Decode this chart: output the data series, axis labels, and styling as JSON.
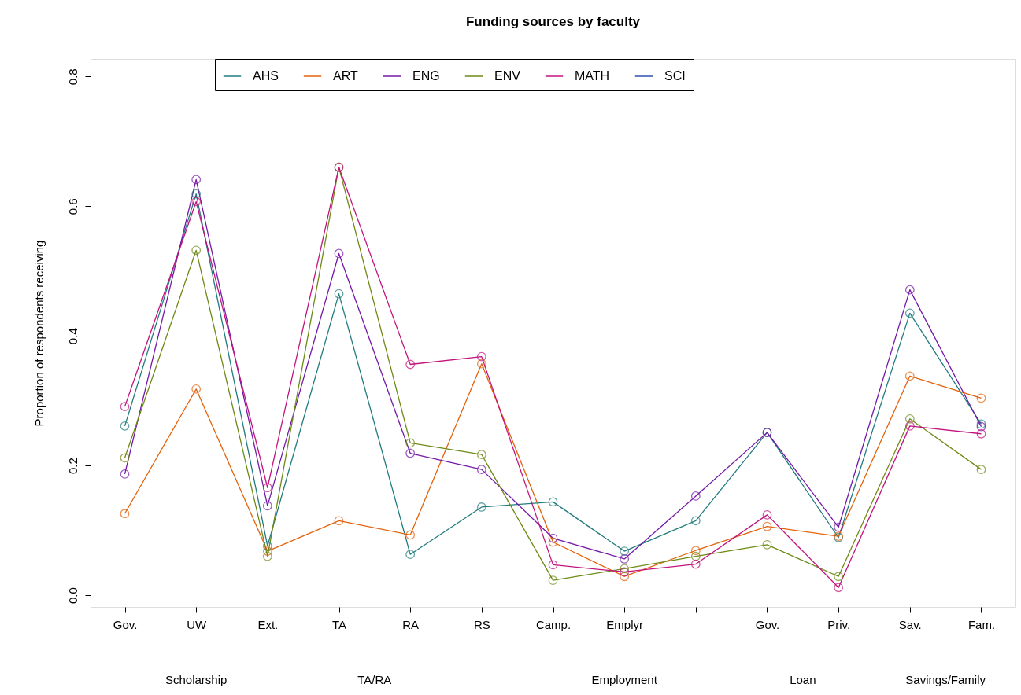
{
  "chart_data": {
    "type": "line",
    "title": "Funding sources by faculty",
    "ylabel": "Proportion of respondents receiving",
    "categories": [
      "Gov.",
      "UW",
      "Ext.",
      "TA",
      "RA",
      "RS",
      "Camp.",
      "Emplyr",
      null,
      "Gov.",
      "Priv.",
      "Sav.",
      "Fam."
    ],
    "series": [
      {
        "name": "AHS",
        "color": "#227b7f",
        "values": [
          0.261,
          0.619,
          0.076,
          0.465,
          0.063,
          0.136,
          0.144,
          0.068,
          0.115,
          0.251,
          0.089,
          0.435,
          0.264
        ]
      },
      {
        "name": "ART",
        "color": "#e3620c",
        "values": [
          0.126,
          0.318,
          0.068,
          0.115,
          0.093,
          0.357,
          0.082,
          0.029,
          0.069,
          0.106,
          0.091,
          0.338,
          0.304
        ]
      },
      {
        "name": "ENG",
        "color": "#7418a8",
        "values": [
          0.187,
          0.641,
          0.138,
          0.527,
          0.219,
          0.194,
          0.088,
          0.056,
          0.153,
          0.251,
          0.105,
          0.471,
          0.26
        ]
      },
      {
        "name": "ENV",
        "color": "#6e8a16",
        "values": [
          0.212,
          0.532,
          0.06,
          0.66,
          0.235,
          0.217,
          0.023,
          0.041,
          0.06,
          0.078,
          0.029,
          0.272,
          0.194
        ]
      },
      {
        "name": "MATH",
        "color": "#c2147e",
        "values": [
          0.291,
          0.607,
          0.166,
          0.66,
          0.356,
          0.368,
          0.047,
          0.036,
          0.048,
          0.124,
          0.012,
          0.261,
          0.249
        ]
      },
      {
        "name": "SCI",
        "color": "#2f4fb0",
        "values": [
          null,
          null,
          null,
          null,
          null,
          null,
          null,
          null,
          null,
          null,
          null,
          null,
          null
        ]
      }
    ],
    "ylim": [
      -0.018,
      0.827
    ],
    "yticks": [
      {
        "value": 0,
        "label": "0.0"
      },
      {
        "value": 0.2,
        "label": "0.2"
      },
      {
        "value": 0.4,
        "label": "0.4"
      },
      {
        "value": 0.6,
        "label": "0.6"
      },
      {
        "value": 0.8,
        "label": "0.8"
      }
    ],
    "annotations": [
      "Scholarship",
      "TA/RA",
      "Employment",
      "Loan",
      "Savings/Family"
    ],
    "legend": "top",
    "marker": "circle",
    "line_style": "solid",
    "grid": false
  }
}
